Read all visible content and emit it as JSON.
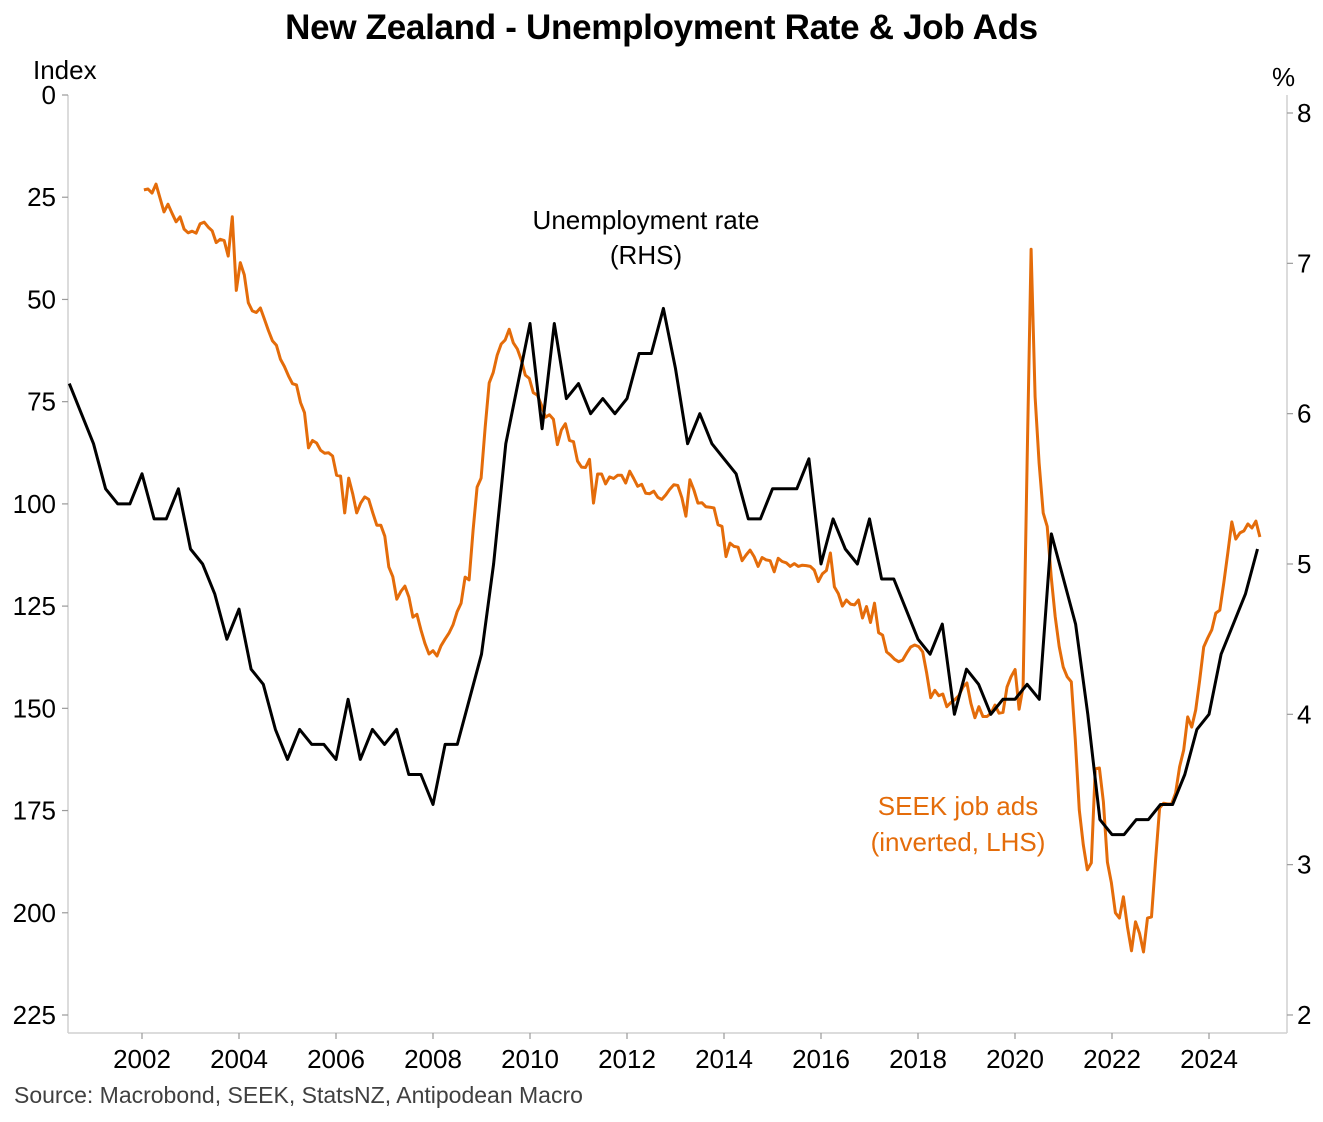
{
  "title": "New Zealand - Unemployment Rate & Job Ads",
  "source": "Source: Macrobond, SEEK, StatsNZ, Antipodean Macro",
  "colors": {
    "unemployment": "#000000",
    "seek": "#E46C0A",
    "axis": "#d0d0d0",
    "tick": "#9a9a9a"
  },
  "annotations": {
    "unemployment_line1": "Unemployment rate",
    "unemployment_line2": "(RHS)",
    "seek_line1": "SEEK job ads",
    "seek_line2": "(inverted, LHS)"
  },
  "chart_data": {
    "type": "line",
    "title": "New Zealand - Unemployment Rate & Job Ads",
    "xlabel": "",
    "ylabel_left": "Index",
    "ylabel_right": "%",
    "x_ticks": [
      "2002",
      "2004",
      "2006",
      "2008",
      "2010",
      "2012",
      "2014",
      "2016",
      "2018",
      "2020",
      "2022",
      "2024"
    ],
    "x_range": [
      2000.45,
      2025.3
    ],
    "left_axis": {
      "label": "Index",
      "inverted": true,
      "range": [
        0,
        225
      ],
      "ticks": [
        0,
        25,
        50,
        75,
        100,
        125,
        150,
        175,
        200,
        225
      ]
    },
    "right_axis": {
      "label": "%",
      "range": [
        2,
        8
      ],
      "ticks": [
        2,
        3,
        4,
        5,
        6,
        7,
        8
      ]
    },
    "grid": false,
    "legend": "inline annotations",
    "series": [
      {
        "name": "Unemployment rate (RHS)",
        "axis": "right",
        "frequency": "quarterly",
        "start": 2000.5,
        "step": 0.25,
        "values": [
          6.2,
          6.0,
          5.8,
          5.5,
          5.4,
          5.4,
          5.6,
          5.3,
          5.3,
          5.5,
          5.1,
          5.0,
          4.8,
          4.5,
          4.7,
          4.3,
          4.2,
          3.9,
          3.7,
          3.9,
          3.8,
          3.8,
          3.7,
          4.1,
          3.7,
          3.9,
          3.8,
          3.9,
          3.6,
          3.6,
          3.4,
          3.8,
          3.8,
          4.1,
          4.4,
          5.0,
          5.8,
          6.2,
          6.6,
          5.9,
          6.6,
          6.1,
          6.2,
          6.0,
          6.1,
          6.0,
          6.1,
          6.4,
          6.4,
          6.7,
          6.3,
          5.8,
          6.0,
          5.8,
          5.7,
          5.6,
          5.3,
          5.3,
          5.5,
          5.5,
          5.5,
          5.7,
          5.0,
          5.3,
          5.1,
          5.0,
          5.3,
          4.9,
          4.9,
          4.7,
          4.5,
          4.4,
          4.6,
          4.0,
          4.3,
          4.2,
          4.0,
          4.1,
          4.1,
          4.2,
          4.1,
          5.2,
          4.9,
          4.6,
          4.0,
          3.3,
          3.2,
          3.2,
          3.3,
          3.3,
          3.4,
          3.4,
          3.6,
          3.9,
          4.0,
          4.4,
          4.6,
          4.8,
          5.1
        ]
      },
      {
        "name": "SEEK job ads (inverted, LHS)",
        "axis": "left",
        "frequency": "monthly",
        "start": 2002.04,
        "end": 2025.05,
        "values": [
          23.2,
          23,
          24,
          21.8,
          25.2,
          28.6,
          26.7,
          28.9,
          31,
          29.8,
          32.8,
          33.7,
          33.3,
          33.8,
          31.5,
          31.1,
          32.3,
          33.2,
          36.1,
          35.3,
          35.6,
          39.4,
          29.8,
          47.8,
          41,
          44,
          50.8,
          52.8,
          53.2,
          52.1,
          54.8,
          57.6,
          60.1,
          61.2,
          64.6,
          66.4,
          68.7,
          70.6,
          70.9,
          75.2,
          77.7,
          86.3,
          84.5,
          85.1,
          86.9,
          87.6,
          87.5,
          88.3,
          93,
          93.2,
          102.2,
          93.7,
          97.5,
          102.2,
          99.8,
          98.3,
          98.9,
          102.2,
          105.2,
          105.2,
          107.9,
          115.4,
          117.8,
          123.3,
          121.4,
          120.1,
          122.8,
          127.7,
          127,
          130.8,
          134.1,
          136.7,
          135.9,
          137.2,
          134.7,
          133.1,
          131.6,
          129.6,
          126.4,
          124.3,
          117.9,
          118.6,
          106.4,
          95.9,
          93.7,
          81.2,
          70.4,
          67.9,
          63.6,
          60.9,
          59.9,
          57.3,
          60.6,
          62.1,
          64.8,
          68.5,
          69.3,
          72.8,
          73.4,
          75.8,
          78.8,
          78.2,
          79.3,
          85.5,
          81.9,
          80.4,
          84.5,
          84.8,
          89.5,
          91,
          91.1,
          89.1,
          99.8,
          92.7,
          92.7,
          95.1,
          93.4,
          93.8,
          93,
          93,
          94.9,
          92,
          93.8,
          95.7,
          95.2,
          97.4,
          97.5,
          96.9,
          98.4,
          98.9,
          97.8,
          96.4,
          95.3,
          95.5,
          98.5,
          103,
          94.1,
          96.6,
          99.8,
          99.7,
          100.7,
          100.8,
          101,
          105.1,
          105.5,
          112.9,
          109.6,
          110.4,
          110.6,
          113.9,
          112.5,
          111.3,
          112.9,
          115.3,
          113.1,
          113.7,
          113.9,
          116.6,
          113.3,
          114.1,
          114.4,
          115.3,
          114.6,
          115.3,
          115,
          115.1,
          115.3,
          116.2,
          119,
          117.1,
          116.3,
          112,
          120.3,
          122,
          125,
          123.5,
          124.5,
          124.7,
          123.5,
          127.9,
          125.1,
          129,
          124.3,
          131.5,
          132.1,
          136.2,
          137,
          138,
          138.6,
          138.2,
          136.5,
          135,
          134.5,
          134.9,
          136.2,
          141.4,
          147.4,
          145.6,
          146.9,
          146.5,
          149.6,
          148.6,
          147.9,
          146.9,
          144.8,
          143.8,
          148.8,
          152.3,
          149.6,
          152,
          152,
          151.2,
          149.2,
          151.2,
          151,
          144.8,
          142.3,
          140.5,
          150.2,
          144.7,
          90,
          37.7,
          73.8,
          90,
          102.2,
          105.5,
          117.8,
          127.6,
          134.9,
          139.9,
          142.3,
          143.5,
          157.7,
          174.9,
          183.4,
          189.5,
          187.8,
          164.8,
          164.6,
          172.9,
          187.6,
          192.7,
          200,
          201.3,
          196.1,
          203.5,
          209.3,
          202.2,
          205,
          209.6,
          201.3,
          201,
          187.1,
          174.4,
          173.2,
          173.4,
          173.4,
          170.7,
          164.3,
          160.2,
          152.1,
          154.6,
          150.4,
          143.1,
          135,
          132.8,
          130.8,
          126.7,
          126,
          119.3,
          112,
          104.4,
          108.6,
          107.1,
          106.6,
          104.9,
          105.9,
          104.2,
          108.1
        ]
      }
    ]
  }
}
